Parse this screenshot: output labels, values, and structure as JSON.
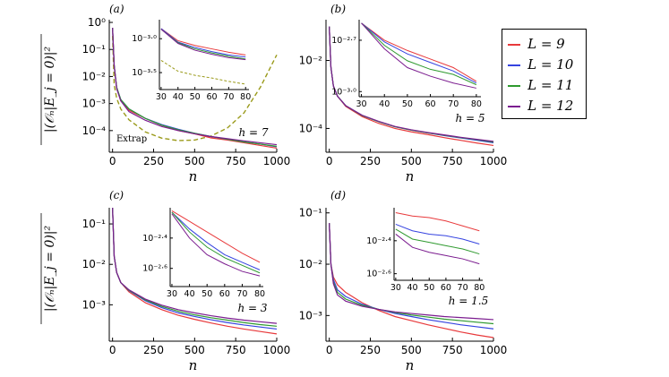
{
  "legend": {
    "entries": [
      {
        "label": "L = 9",
        "color": "#e8393b"
      },
      {
        "label": "L = 10",
        "color": "#3543e0"
      },
      {
        "label": "L = 11",
        "color": "#2f9a2f"
      },
      {
        "label": "L = 12",
        "color": "#7b1c8f"
      }
    ]
  },
  "ylabel": "|(𝒪ₙ|E_j = 0)|²",
  "chart_data": [
    {
      "type": "line",
      "panel": "(a)",
      "annotation": "h = 7",
      "extra_label": "Extrap",
      "xlabel": "n",
      "x_ticks": [
        0,
        250,
        500,
        750,
        1000
      ],
      "xlim": [
        -20,
        1000
      ],
      "ylog": true,
      "ylim_log10": [
        -4.8,
        0.1
      ],
      "y_ticks": [
        {
          "v": 0,
          "label": "10⁰"
        },
        {
          "v": -1,
          "label": "10⁻¹"
        },
        {
          "v": -2,
          "label": "10⁻²"
        },
        {
          "v": -3,
          "label": "10⁻³"
        },
        {
          "v": -4,
          "label": "10⁻⁴"
        }
      ],
      "x": [
        0,
        10,
        25,
        50,
        100,
        200,
        300,
        400,
        500,
        600,
        700,
        800,
        900,
        1000
      ],
      "series": [
        {
          "name": "L = 9",
          "values": [
            -0.2,
            -1.6,
            -2.4,
            -2.9,
            -3.25,
            -3.55,
            -3.8,
            -4.0,
            -4.12,
            -4.27,
            -4.35,
            -4.45,
            -4.55,
            -4.65
          ]
        },
        {
          "name": "L = 10",
          "values": [
            -0.2,
            -1.6,
            -2.4,
            -2.85,
            -3.2,
            -3.55,
            -3.78,
            -3.95,
            -4.1,
            -4.22,
            -4.32,
            -4.42,
            -4.5,
            -4.6
          ]
        },
        {
          "name": "L = 11",
          "values": [
            -0.2,
            -1.6,
            -2.4,
            -2.85,
            -3.2,
            -3.55,
            -3.8,
            -3.97,
            -4.1,
            -4.22,
            -4.32,
            -4.42,
            -4.5,
            -4.58
          ]
        },
        {
          "name": "L = 12",
          "values": [
            -0.2,
            -1.6,
            -2.45,
            -2.9,
            -3.3,
            -3.62,
            -3.85,
            -4.0,
            -4.12,
            -4.22,
            -4.3,
            -4.38,
            -4.45,
            -4.52
          ]
        }
      ],
      "extrapolation": {
        "name": "Extrap",
        "x": [
          0,
          10,
          25,
          50,
          100,
          200,
          300,
          400,
          500,
          600,
          700,
          800,
          900,
          1000
        ],
        "values": [
          -0.5,
          -2.3,
          -2.8,
          -3.2,
          -3.6,
          -4.05,
          -4.28,
          -4.37,
          -4.35,
          -4.2,
          -3.9,
          -3.35,
          -2.4,
          -1.2
        ]
      },
      "inset": {
        "x_ticks": [
          30,
          40,
          50,
          60,
          70,
          80
        ],
        "xlim": [
          29,
          82
        ],
        "ylim_log10": [
          -3.75,
          -2.72
        ],
        "y_ticks": [
          {
            "v": -3.0,
            "label": "10⁻³·⁰"
          },
          {
            "v": -3.5,
            "label": "10⁻³·⁵"
          }
        ],
        "x": [
          30,
          40,
          50,
          60,
          70,
          80
        ],
        "series": [
          {
            "name": "L = 9",
            "values": [
              -2.85,
              -3.03,
              -3.1,
              -3.15,
              -3.2,
              -3.24
            ]
          },
          {
            "name": "L = 10",
            "values": [
              -2.85,
              -3.05,
              -3.13,
              -3.19,
              -3.24,
              -3.27
            ]
          },
          {
            "name": "L = 11",
            "values": [
              -2.86,
              -3.06,
              -3.15,
              -3.21,
              -3.26,
              -3.3
            ]
          },
          {
            "name": "L = 12",
            "values": [
              -2.86,
              -3.07,
              -3.17,
              -3.23,
              -3.28,
              -3.31
            ]
          }
        ],
        "extrapolation": {
          "values": [
            -3.32,
            -3.48,
            -3.54,
            -3.58,
            -3.63,
            -3.67
          ]
        }
      }
    },
    {
      "type": "line",
      "panel": "(b)",
      "annotation": "h = 5",
      "xlabel": "n",
      "x_ticks": [
        0,
        250,
        500,
        750,
        1000
      ],
      "xlim": [
        -20,
        1000
      ],
      "ylog": true,
      "ylim_log10": [
        -4.7,
        -0.8
      ],
      "y_ticks": [
        {
          "v": -2,
          "label": "10⁻²"
        },
        {
          "v": -4,
          "label": "10⁻⁴"
        }
      ],
      "x": [
        0,
        10,
        25,
        50,
        100,
        200,
        300,
        400,
        500,
        600,
        700,
        800,
        900,
        1000
      ],
      "series": [
        {
          "name": "L = 9",
          "values": [
            -1.0,
            -2.2,
            -2.75,
            -3.05,
            -3.35,
            -3.65,
            -3.85,
            -4.0,
            -4.1,
            -4.18,
            -4.27,
            -4.35,
            -4.43,
            -4.5
          ]
        },
        {
          "name": "L = 10",
          "values": [
            -1.0,
            -2.2,
            -2.75,
            -3.05,
            -3.33,
            -3.62,
            -3.8,
            -3.95,
            -4.05,
            -4.13,
            -4.21,
            -4.28,
            -4.35,
            -4.42
          ]
        },
        {
          "name": "L = 11",
          "values": [
            -1.0,
            -2.2,
            -2.75,
            -3.05,
            -3.33,
            -3.62,
            -3.8,
            -3.95,
            -4.05,
            -4.13,
            -4.2,
            -4.27,
            -4.33,
            -4.4
          ]
        },
        {
          "name": "L = 12",
          "values": [
            -1.0,
            -2.2,
            -2.75,
            -3.05,
            -3.33,
            -3.61,
            -3.79,
            -3.94,
            -4.04,
            -4.12,
            -4.19,
            -4.26,
            -4.32,
            -4.38
          ]
        }
      ],
      "inset": {
        "x_ticks": [
          30,
          40,
          50,
          60,
          70,
          80
        ],
        "xlim": [
          29,
          82
        ],
        "ylim_log10": [
          -3.03,
          -2.58
        ],
        "y_ticks": [
          {
            "v": -2.7,
            "label": "10⁻²·⁷"
          },
          {
            "v": -3.0,
            "label": "10⁻³·⁰"
          }
        ],
        "x": [
          30,
          40,
          50,
          60,
          70,
          80
        ],
        "series": [
          {
            "name": "L = 9",
            "values": [
              -2.6,
              -2.7,
              -2.76,
              -2.81,
              -2.86,
              -2.94
            ]
          },
          {
            "name": "L = 10",
            "values": [
              -2.6,
              -2.71,
              -2.78,
              -2.83,
              -2.88,
              -2.95
            ]
          },
          {
            "name": "L = 11",
            "values": [
              -2.6,
              -2.73,
              -2.82,
              -2.87,
              -2.9,
              -2.96
            ]
          },
          {
            "name": "L = 12",
            "values": [
              -2.6,
              -2.75,
              -2.86,
              -2.91,
              -2.95,
              -2.98
            ]
          }
        ]
      }
    },
    {
      "type": "line",
      "panel": "(c)",
      "annotation": "h = 3",
      "xlabel": "n",
      "x_ticks": [
        0,
        250,
        500,
        750,
        1000
      ],
      "xlim": [
        -20,
        1000
      ],
      "ylog": true,
      "ylim_log10": [
        -3.9,
        -0.6
      ],
      "y_ticks": [
        {
          "v": -1,
          "label": "10⁻¹"
        },
        {
          "v": -2,
          "label": "10⁻²"
        },
        {
          "v": -3,
          "label": "10⁻³"
        }
      ],
      "x": [
        0,
        10,
        25,
        50,
        100,
        200,
        300,
        400,
        500,
        600,
        700,
        800,
        900,
        1000
      ],
      "series": [
        {
          "name": "L = 9",
          "values": [
            -0.6,
            -1.8,
            -2.2,
            -2.45,
            -2.68,
            -2.95,
            -3.12,
            -3.26,
            -3.36,
            -3.45,
            -3.53,
            -3.6,
            -3.66,
            -3.72
          ]
        },
        {
          "name": "L = 10",
          "values": [
            -0.6,
            -1.8,
            -2.2,
            -2.45,
            -2.65,
            -2.9,
            -3.07,
            -3.2,
            -3.29,
            -3.37,
            -3.44,
            -3.5,
            -3.55,
            -3.6
          ]
        },
        {
          "name": "L = 11",
          "values": [
            -0.6,
            -1.8,
            -2.2,
            -2.45,
            -2.64,
            -2.88,
            -3.04,
            -3.16,
            -3.25,
            -3.32,
            -3.38,
            -3.44,
            -3.49,
            -3.53
          ]
        },
        {
          "name": "L = 12",
          "values": [
            -0.6,
            -1.8,
            -2.2,
            -2.45,
            -2.63,
            -2.86,
            -3.01,
            -3.12,
            -3.2,
            -3.27,
            -3.33,
            -3.38,
            -3.42,
            -3.46
          ]
        }
      ],
      "inset": {
        "x_ticks": [
          30,
          40,
          50,
          60,
          70,
          80
        ],
        "xlim": [
          29,
          82
        ],
        "ylim_log10": [
          -2.72,
          -2.2
        ],
        "y_ticks": [
          {
            "v": -2.4,
            "label": "10⁻²·⁴"
          },
          {
            "v": -2.6,
            "label": "10⁻²·⁶"
          }
        ],
        "x": [
          30,
          40,
          50,
          60,
          70,
          80
        ],
        "series": [
          {
            "name": "L = 9",
            "values": [
              -2.22,
              -2.29,
              -2.36,
              -2.43,
              -2.5,
              -2.56
            ]
          },
          {
            "name": "L = 10",
            "values": [
              -2.23,
              -2.34,
              -2.43,
              -2.51,
              -2.56,
              -2.61
            ]
          },
          {
            "name": "L = 11",
            "values": [
              -2.23,
              -2.36,
              -2.46,
              -2.53,
              -2.58,
              -2.63
            ]
          },
          {
            "name": "L = 12",
            "values": [
              -2.24,
              -2.4,
              -2.51,
              -2.57,
              -2.62,
              -2.65
            ]
          }
        ]
      }
    },
    {
      "type": "line",
      "panel": "(d)",
      "annotation": "h = 1.5",
      "xlabel": "n",
      "x_ticks": [
        0,
        250,
        500,
        750,
        1000
      ],
      "xlim": [
        -20,
        1000
      ],
      "ylog": true,
      "ylim_log10": [
        -3.5,
        -0.9
      ],
      "y_ticks": [
        {
          "v": -1,
          "label": "10⁻¹"
        },
        {
          "v": -2,
          "label": "10⁻²"
        },
        {
          "v": -3,
          "label": "10⁻³"
        }
      ],
      "x": [
        0,
        10,
        25,
        50,
        100,
        200,
        300,
        400,
        500,
        600,
        700,
        800,
        900,
        1000
      ],
      "series": [
        {
          "name": "L = 9",
          "values": [
            -1.2,
            -2.0,
            -2.25,
            -2.4,
            -2.55,
            -2.75,
            -2.9,
            -3.02,
            -3.1,
            -3.18,
            -3.25,
            -3.32,
            -3.38,
            -3.43
          ]
        },
        {
          "name": "L = 10",
          "values": [
            -1.2,
            -2.0,
            -2.3,
            -2.5,
            -2.63,
            -2.78,
            -2.88,
            -2.96,
            -3.02,
            -3.08,
            -3.13,
            -3.18,
            -3.22,
            -3.26
          ]
        },
        {
          "name": "L = 11",
          "values": [
            -1.2,
            -2.0,
            -2.35,
            -2.55,
            -2.68,
            -2.8,
            -2.88,
            -2.94,
            -2.99,
            -3.03,
            -3.07,
            -3.1,
            -3.13,
            -3.16
          ]
        },
        {
          "name": "L = 12",
          "values": [
            -1.2,
            -2.0,
            -2.38,
            -2.6,
            -2.72,
            -2.82,
            -2.88,
            -2.93,
            -2.96,
            -2.99,
            -3.02,
            -3.04,
            -3.06,
            -3.08
          ]
        }
      ],
      "inset": {
        "x_ticks": [
          30,
          40,
          50,
          60,
          70,
          80
        ],
        "xlim": [
          29,
          82
        ],
        "ylim_log10": [
          -2.64,
          -2.2
        ],
        "y_ticks": [
          {
            "v": -2.4,
            "label": "10⁻²·⁴"
          },
          {
            "v": -2.6,
            "label": "10⁻²·⁶"
          }
        ],
        "x": [
          30,
          40,
          50,
          60,
          70,
          80
        ],
        "series": [
          {
            "name": "L = 9",
            "values": [
              -2.23,
              -2.25,
              -2.26,
              -2.28,
              -2.31,
              -2.34
            ]
          },
          {
            "name": "L = 10",
            "values": [
              -2.3,
              -2.34,
              -2.36,
              -2.37,
              -2.39,
              -2.42
            ]
          },
          {
            "name": "L = 11",
            "values": [
              -2.33,
              -2.39,
              -2.41,
              -2.43,
              -2.45,
              -2.48
            ]
          },
          {
            "name": "L = 12",
            "values": [
              -2.36,
              -2.44,
              -2.47,
              -2.49,
              -2.51,
              -2.54
            ]
          }
        ]
      }
    }
  ]
}
